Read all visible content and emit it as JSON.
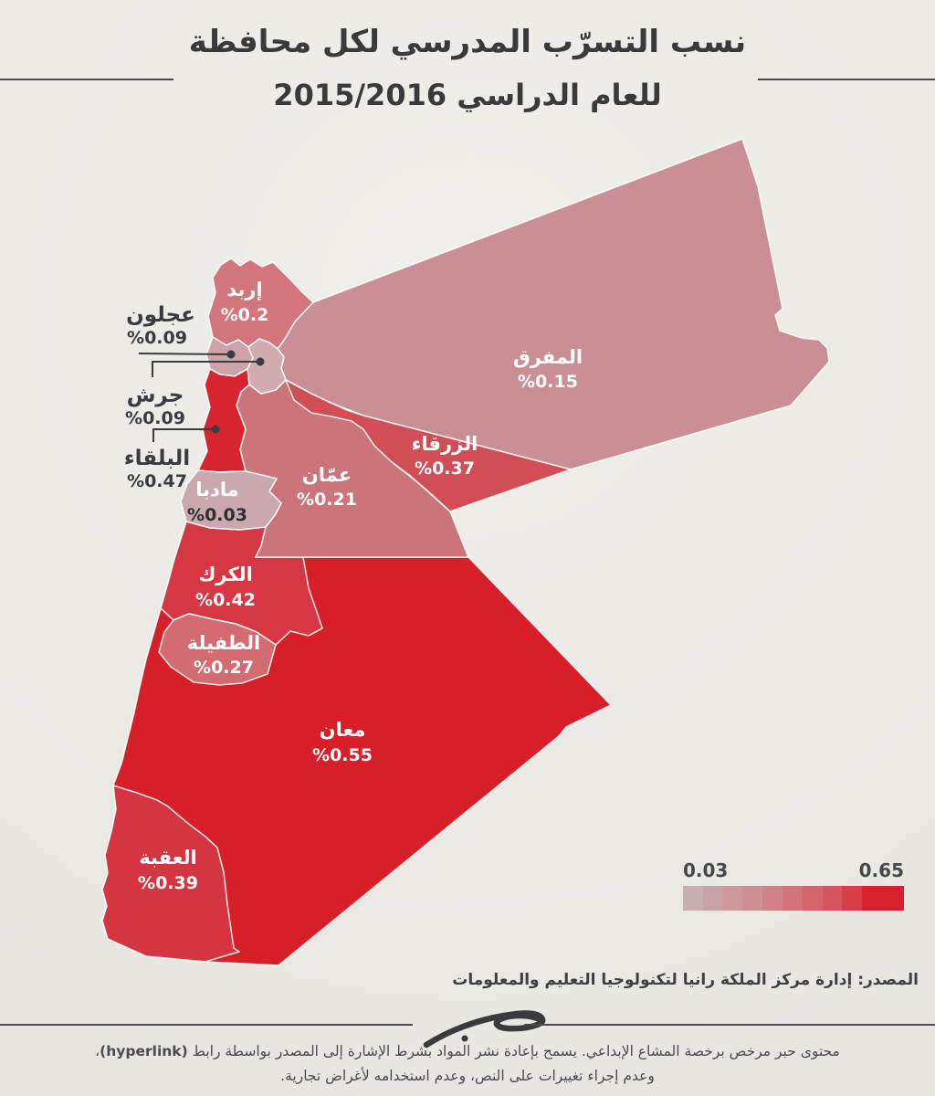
{
  "title": {
    "line1": "نسب التسرّب المدرسي لكل محافظة",
    "line2": "للعام الدراسي 2015/2016"
  },
  "map": {
    "regions": [
      {
        "id": "irbid",
        "name": "إربد",
        "value_label": "%0.2",
        "color": "#d3767c"
      },
      {
        "id": "ajloun",
        "name": "عجلون",
        "value_label": "%0.09",
        "color": "#cda3a7"
      },
      {
        "id": "jerash",
        "name": "جرش",
        "value_label": "%0.09",
        "color": "#d1abae"
      },
      {
        "id": "balqa",
        "name": "البلقاء",
        "value_label": "%0.47",
        "color": "#d7252f"
      },
      {
        "id": "madaba",
        "name": "مادبا",
        "value_label": "%0.03",
        "color": "#c9a9ad"
      },
      {
        "id": "amman",
        "name": "عمّان",
        "value_label": "%0.21",
        "color": "#cb747a"
      },
      {
        "id": "zarqa",
        "name": "الزرقاء",
        "value_label": "%0.37",
        "color": "#d24e57"
      },
      {
        "id": "mafraq",
        "name": "المفرق",
        "value_label": "%0.15",
        "color": "#c98f94"
      },
      {
        "id": "karak",
        "name": "الكرك",
        "value_label": "%0.42",
        "color": "#d53843"
      },
      {
        "id": "tafilah",
        "name": "الطفيلة",
        "value_label": "%0.27",
        "color": "#d26b72"
      },
      {
        "id": "maan",
        "name": "معان",
        "value_label": "%0.55",
        "color": "#d71f2a"
      },
      {
        "id": "aqaba",
        "name": "العقبة",
        "value_label": "%0.39",
        "color": "#d53540"
      }
    ]
  },
  "chart_data": {
    "type": "heatmap",
    "subtype": "choropleth-map-jordan-governorates",
    "title": "نسب التسرّب المدرسي لكل محافظة للعام الدراسي 2015/2016",
    "categories": [
      "إربد",
      "عجلون",
      "جرش",
      "البلقاء",
      "مادبا",
      "عمّان",
      "الزرقاء",
      "المفرق",
      "الكرك",
      "الطفيلة",
      "معان",
      "العقبة"
    ],
    "values": [
      0.2,
      0.09,
      0.09,
      0.47,
      0.03,
      0.21,
      0.37,
      0.15,
      0.42,
      0.27,
      0.55,
      0.39
    ],
    "unit": "%",
    "colorscale_range": [
      0.03,
      0.65
    ],
    "legend_position": "bottom-right"
  },
  "legend": {
    "min": "0.03",
    "max": "0.65",
    "colors": [
      "#c6aeb1",
      "#c9a2a6",
      "#cc989c",
      "#ce8f94",
      "#d08288",
      "#d37379",
      "#d5646c",
      "#d4555e",
      "#d63f49",
      "#d7212c"
    ]
  },
  "source": "المصدر: إدارة مركز الملكة رانيا لتكنولوجيا التعليم والمعلومات",
  "footer": {
    "line1_pre": "محتوى حبر مرخص برخصة المشاع الإبداعي. يسمح بإعادة نشر المواد بشرط الإشارة إلى المصدر بواسطة رابط ",
    "hyperlink": "(hyperlink)",
    "line1_post": "،",
    "line2": "وعدم إجراء تغييرات على النص، وعدم استخدامه لأغراض تجارية."
  }
}
